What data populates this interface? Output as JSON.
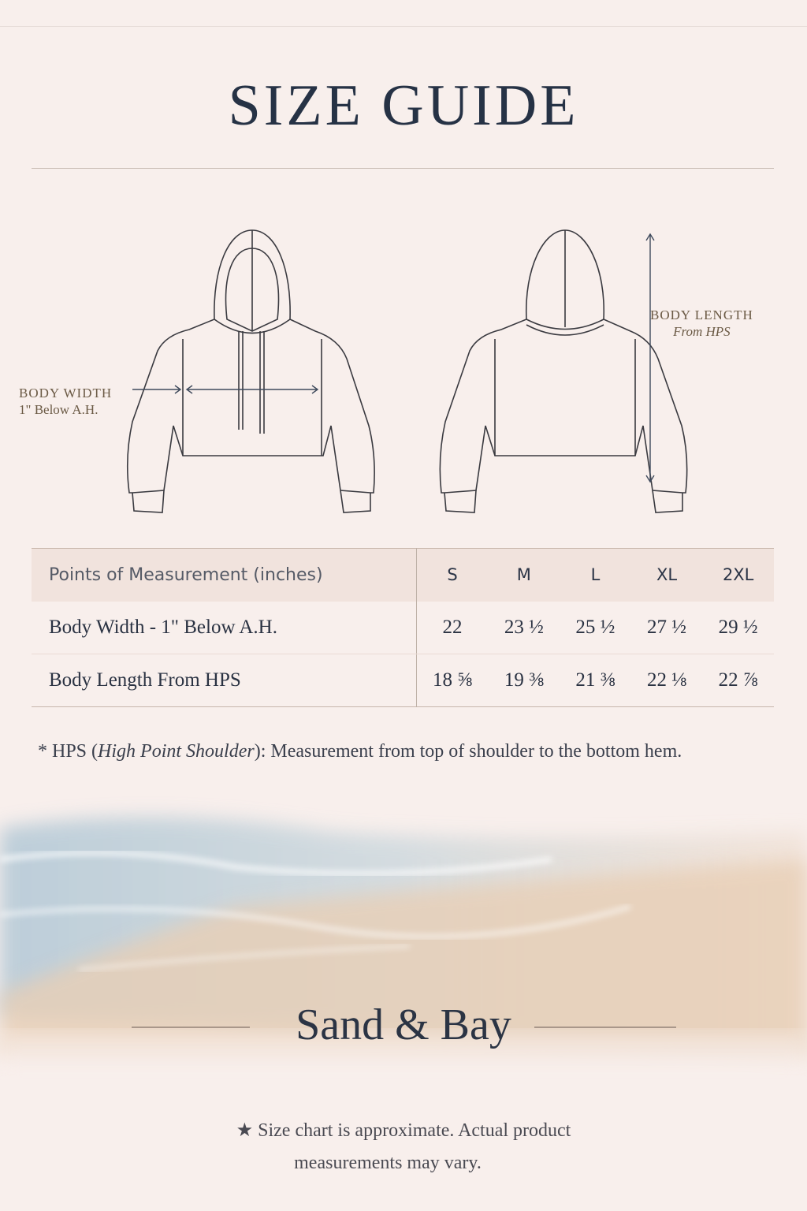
{
  "title": "SIZE GUIDE",
  "diagram": {
    "body_width_label": "BODY WIDTH",
    "body_width_sub": "1\" Below A.H.",
    "body_length_label": "BODY LENGTH",
    "body_length_sub": "From HPS"
  },
  "table": {
    "header": "Points of Measurement (inches)",
    "sizes": [
      "S",
      "M",
      "L",
      "XL",
      "2XL"
    ],
    "rows": [
      {
        "label": "Body Width - 1\" Below A.H.",
        "values": [
          "22",
          "23 ½",
          "25 ½",
          "27 ½",
          "29 ½"
        ]
      },
      {
        "label": "Body Length From HPS",
        "values": [
          "18 ⅝",
          "19 ⅜",
          "21 ⅜",
          "22 ⅛",
          "22 ⅞"
        ]
      }
    ]
  },
  "note": {
    "star": "*",
    "abbr": "HPS",
    "italic": "High Point Shoulder",
    "text": ": Measurement from top of shoulder to the bottom hem."
  },
  "brand": "Sand & Bay",
  "disclaimer": {
    "line1": "★ Size chart is approximate. Actual product",
    "line2": "measurements may vary."
  },
  "colors": {
    "background": "#f8efec",
    "text": "#263245",
    "label": "#6b5a45",
    "sea": "#a9c3d3",
    "sand": "#e8cfb6"
  }
}
